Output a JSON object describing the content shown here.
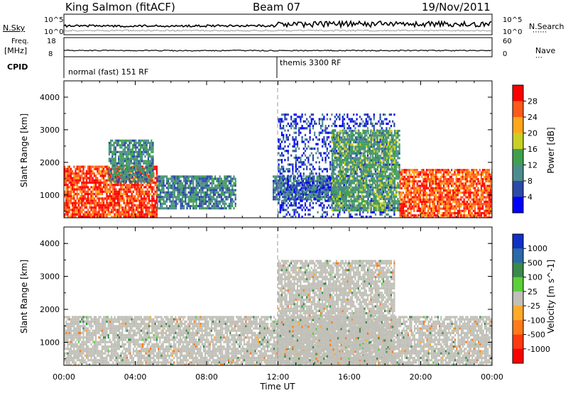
{
  "header": {
    "station": "King Salmon (fitACF)",
    "beam": "Beam 07",
    "date": "19/Nov/2011"
  },
  "panels": {
    "nsky_label": "N.Sky",
    "nsky_tick_top": "10^5",
    "nsky_tick_bottom": "10^0",
    "nsearch_label": "N.Search",
    "nsearch_tick_top": "10^5",
    "nsearch_tick_bottom": "10^0",
    "freq_label_1": "Freq.",
    "freq_label_2": "[MHz]",
    "freq_tick_top": "18",
    "freq_tick_bottom": "8",
    "nave_label": "Nave",
    "nave_tick_top": "60",
    "nave_tick_bottom": "0",
    "cpid_label": "CPID",
    "cpid_mode_1": "normal (fast) 151 RF",
    "cpid_mode_2": "themis 3300 RF"
  },
  "chart_data": [
    {
      "type": "heatmap",
      "title": "",
      "ylabel": "Slant Range [km]",
      "xlabel": "",
      "x_range": [
        "00:00",
        "00:00"
      ],
      "ylim": [
        300,
        4500
      ],
      "y_ticks": [
        "1000",
        "2000",
        "3000",
        "4000"
      ],
      "colorbar": {
        "label": "Power [dB]",
        "ticks": [
          "4",
          "8",
          "12",
          "16",
          "20",
          "24",
          "28"
        ],
        "range": [
          0,
          30
        ],
        "colors": [
          "#0000ff",
          "#2c4aa8",
          "#4c8c8c",
          "#3fa04f",
          "#c8d026",
          "#ffa61a",
          "#ff5a1a",
          "#ff0000"
        ]
      },
      "regions": [
        {
          "t_start": 0.0,
          "t_end": 5.2,
          "range_min": 300,
          "range_max": 1900,
          "level": 26
        },
        {
          "t_start": 2.5,
          "t_end": 5.0,
          "range_min": 1400,
          "range_max": 2700,
          "level": 10
        },
        {
          "t_start": 5.2,
          "t_end": 9.6,
          "range_min": 600,
          "range_max": 1600,
          "level": 9
        },
        {
          "t_start": 11.7,
          "t_end": 15.8,
          "range_min": 900,
          "range_max": 1600,
          "level": 8
        },
        {
          "t_start": 12.0,
          "t_end": 18.5,
          "range_min": 300,
          "range_max": 3500,
          "level": 5
        },
        {
          "t_start": 15.0,
          "t_end": 18.8,
          "range_min": 500,
          "range_max": 3000,
          "level": 12
        },
        {
          "t_start": 18.8,
          "t_end": 24.0,
          "range_min": 300,
          "range_max": 1800,
          "level": 25
        }
      ]
    },
    {
      "type": "heatmap",
      "title": "",
      "ylabel": "Slant Range [km]",
      "xlabel": "Time UT",
      "x_ticks": [
        "00:00",
        "04:00",
        "08:00",
        "12:00",
        "16:00",
        "20:00",
        "00:00"
      ],
      "ylim": [
        300,
        4500
      ],
      "y_ticks": [
        "1000",
        "2000",
        "3000",
        "4000"
      ],
      "colorbar": {
        "label": "Velocity [m s^-1]",
        "ticks": [
          "1000",
          "500",
          "100",
          "25",
          "-25",
          "-100",
          "-500",
          "-1000"
        ],
        "range": [
          -1200,
          1200
        ],
        "colors": [
          "#1030c8",
          "#2a6aa8",
          "#3a8a4a",
          "#5ad03a",
          "#c0c0b8",
          "#ffaa2a",
          "#ff7a1a",
          "#ff3a10",
          "#ff0000"
        ]
      },
      "regions": [
        {
          "t_start": 0.0,
          "t_end": 24.0,
          "range_min": 300,
          "range_max": 1800,
          "velocity": 0,
          "note_style": "ground scatter"
        },
        {
          "t_start": 12.0,
          "t_end": 18.5,
          "range_min": 300,
          "range_max": 3500,
          "velocity": 0
        }
      ]
    }
  ]
}
